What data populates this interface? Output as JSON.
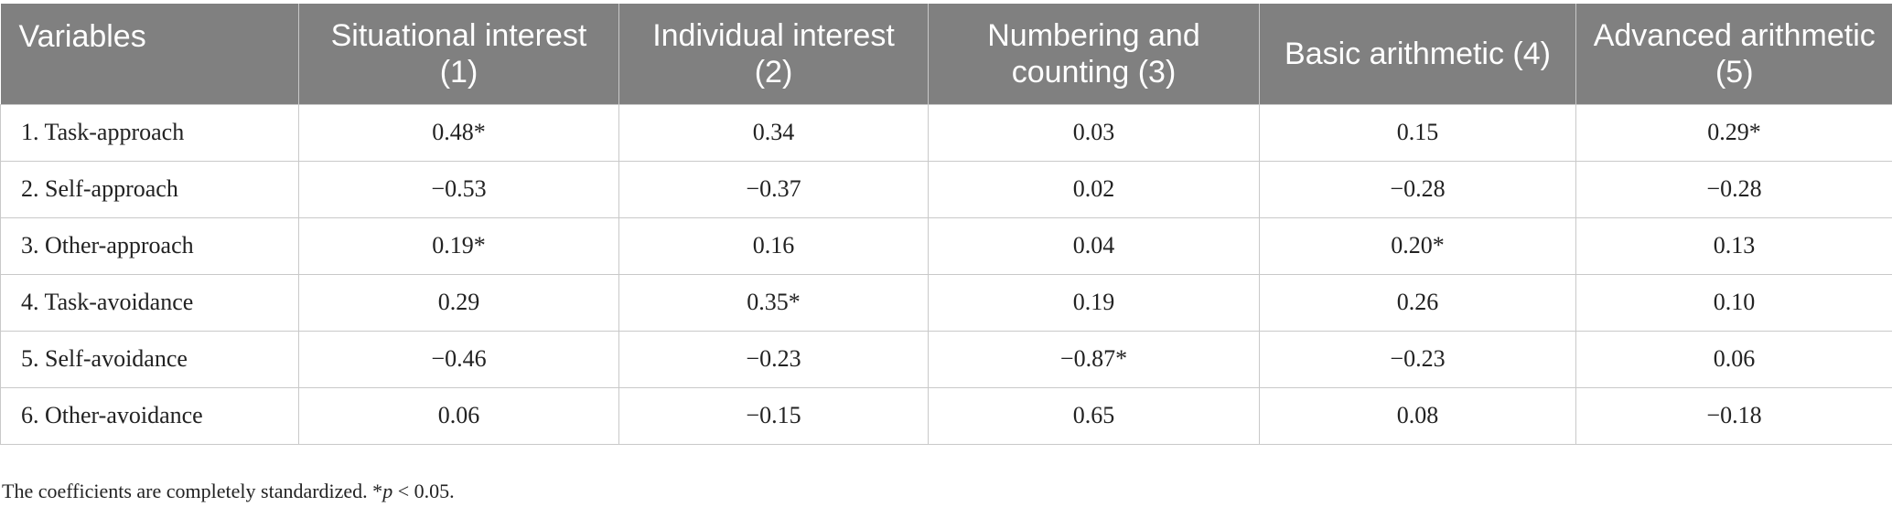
{
  "table": {
    "headers": [
      "Variables",
      "Situational interest (1)",
      "Individual interest (2)",
      "Numbering and counting (3)",
      "Basic arithmetic (4)",
      "Advanced arithmetic (5)"
    ],
    "rows": [
      [
        "1.  Task-approach",
        "0.48*",
        "0.34",
        "0.03",
        "0.15",
        "0.29*"
      ],
      [
        "2.  Self-approach",
        "−0.53",
        "−0.37",
        "0.02",
        "−0.28",
        "−0.28"
      ],
      [
        "3.  Other-approach",
        "0.19*",
        "0.16",
        "0.04",
        "0.20*",
        "0.13"
      ],
      [
        "4.  Task-avoidance",
        "0.29",
        "0.35*",
        "0.19",
        "0.26",
        "0.10"
      ],
      [
        "5.  Self-avoidance",
        "−0.46",
        "−0.23",
        "−0.87*",
        "−0.23",
        "0.06"
      ],
      [
        "6.  Other-avoidance",
        "0.06",
        "−0.15",
        "0.65",
        "0.08",
        "−0.18"
      ]
    ]
  },
  "footnote": {
    "text": "The coefficients are completely standardized. *",
    "p_symbol": "p",
    "threshold": " < 0.05."
  }
}
